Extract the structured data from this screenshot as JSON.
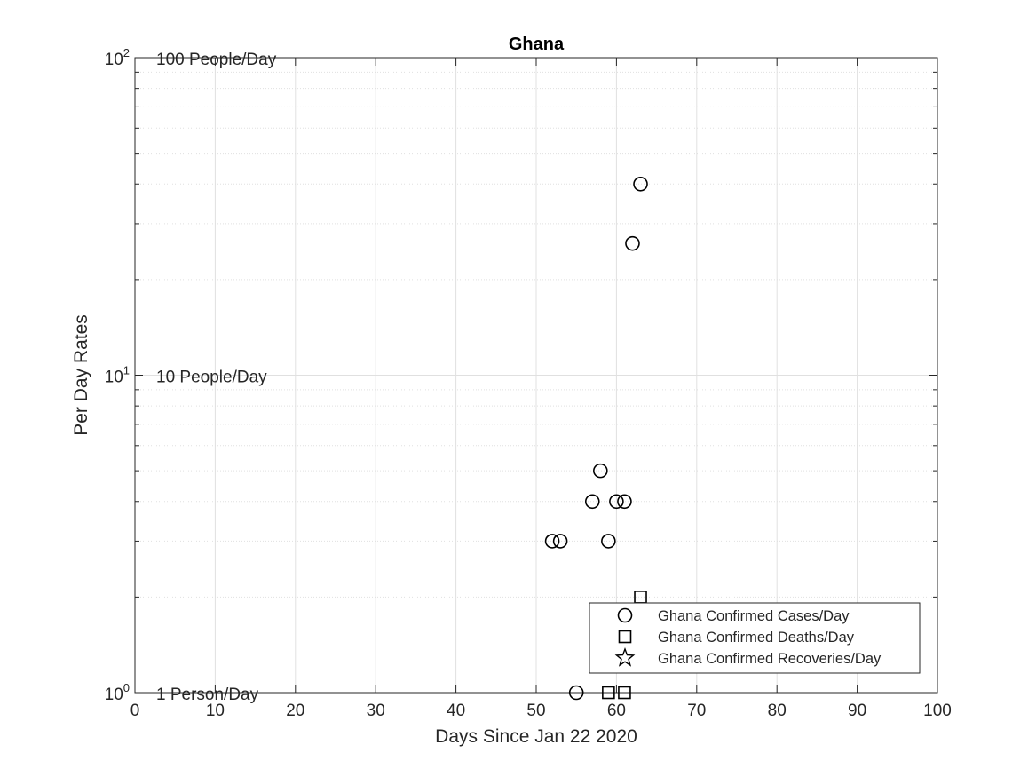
{
  "chart_data": {
    "type": "scatter",
    "title": "Ghana",
    "xlabel": "Days Since Jan 22 2020",
    "ylabel": "Per Day Rates",
    "xlim": [
      0,
      100
    ],
    "ylim": [
      1,
      100
    ],
    "yscale": "log",
    "grid": true,
    "minor_grid": true,
    "legend_position": "bottom-right",
    "x_ticks": [
      "0",
      "10",
      "20",
      "30",
      "40",
      "50",
      "60",
      "70",
      "80",
      "90",
      "100"
    ],
    "y_ticks": [
      {
        "base": "10",
        "exponent": "0"
      },
      {
        "base": "10",
        "exponent": "1"
      },
      {
        "base": "10",
        "exponent": "2"
      }
    ],
    "annotations": [
      {
        "text": "100 People/Day",
        "y": 100
      },
      {
        "text": "10 People/Day",
        "y": 10
      },
      {
        "text": "1 Person/Day",
        "y": 1
      }
    ],
    "series": [
      {
        "name": "Ghana Confirmed Cases/Day",
        "marker": "circle",
        "points": [
          [
            52,
            3
          ],
          [
            53,
            3
          ],
          [
            55,
            1
          ],
          [
            57,
            4
          ],
          [
            58,
            5
          ],
          [
            59,
            3
          ],
          [
            60,
            4
          ],
          [
            61,
            4
          ],
          [
            62,
            26
          ],
          [
            63,
            40
          ]
        ]
      },
      {
        "name": "Ghana Confirmed Deaths/Day",
        "marker": "square",
        "points": [
          [
            59,
            1
          ],
          [
            61,
            1
          ],
          [
            63,
            2
          ]
        ]
      },
      {
        "name": "Ghana Confirmed Recoveries/Day",
        "marker": "star",
        "points": []
      }
    ],
    "colors": {
      "grid": "#e0e0e0",
      "axis": "#262626",
      "marker": "#000000"
    }
  }
}
